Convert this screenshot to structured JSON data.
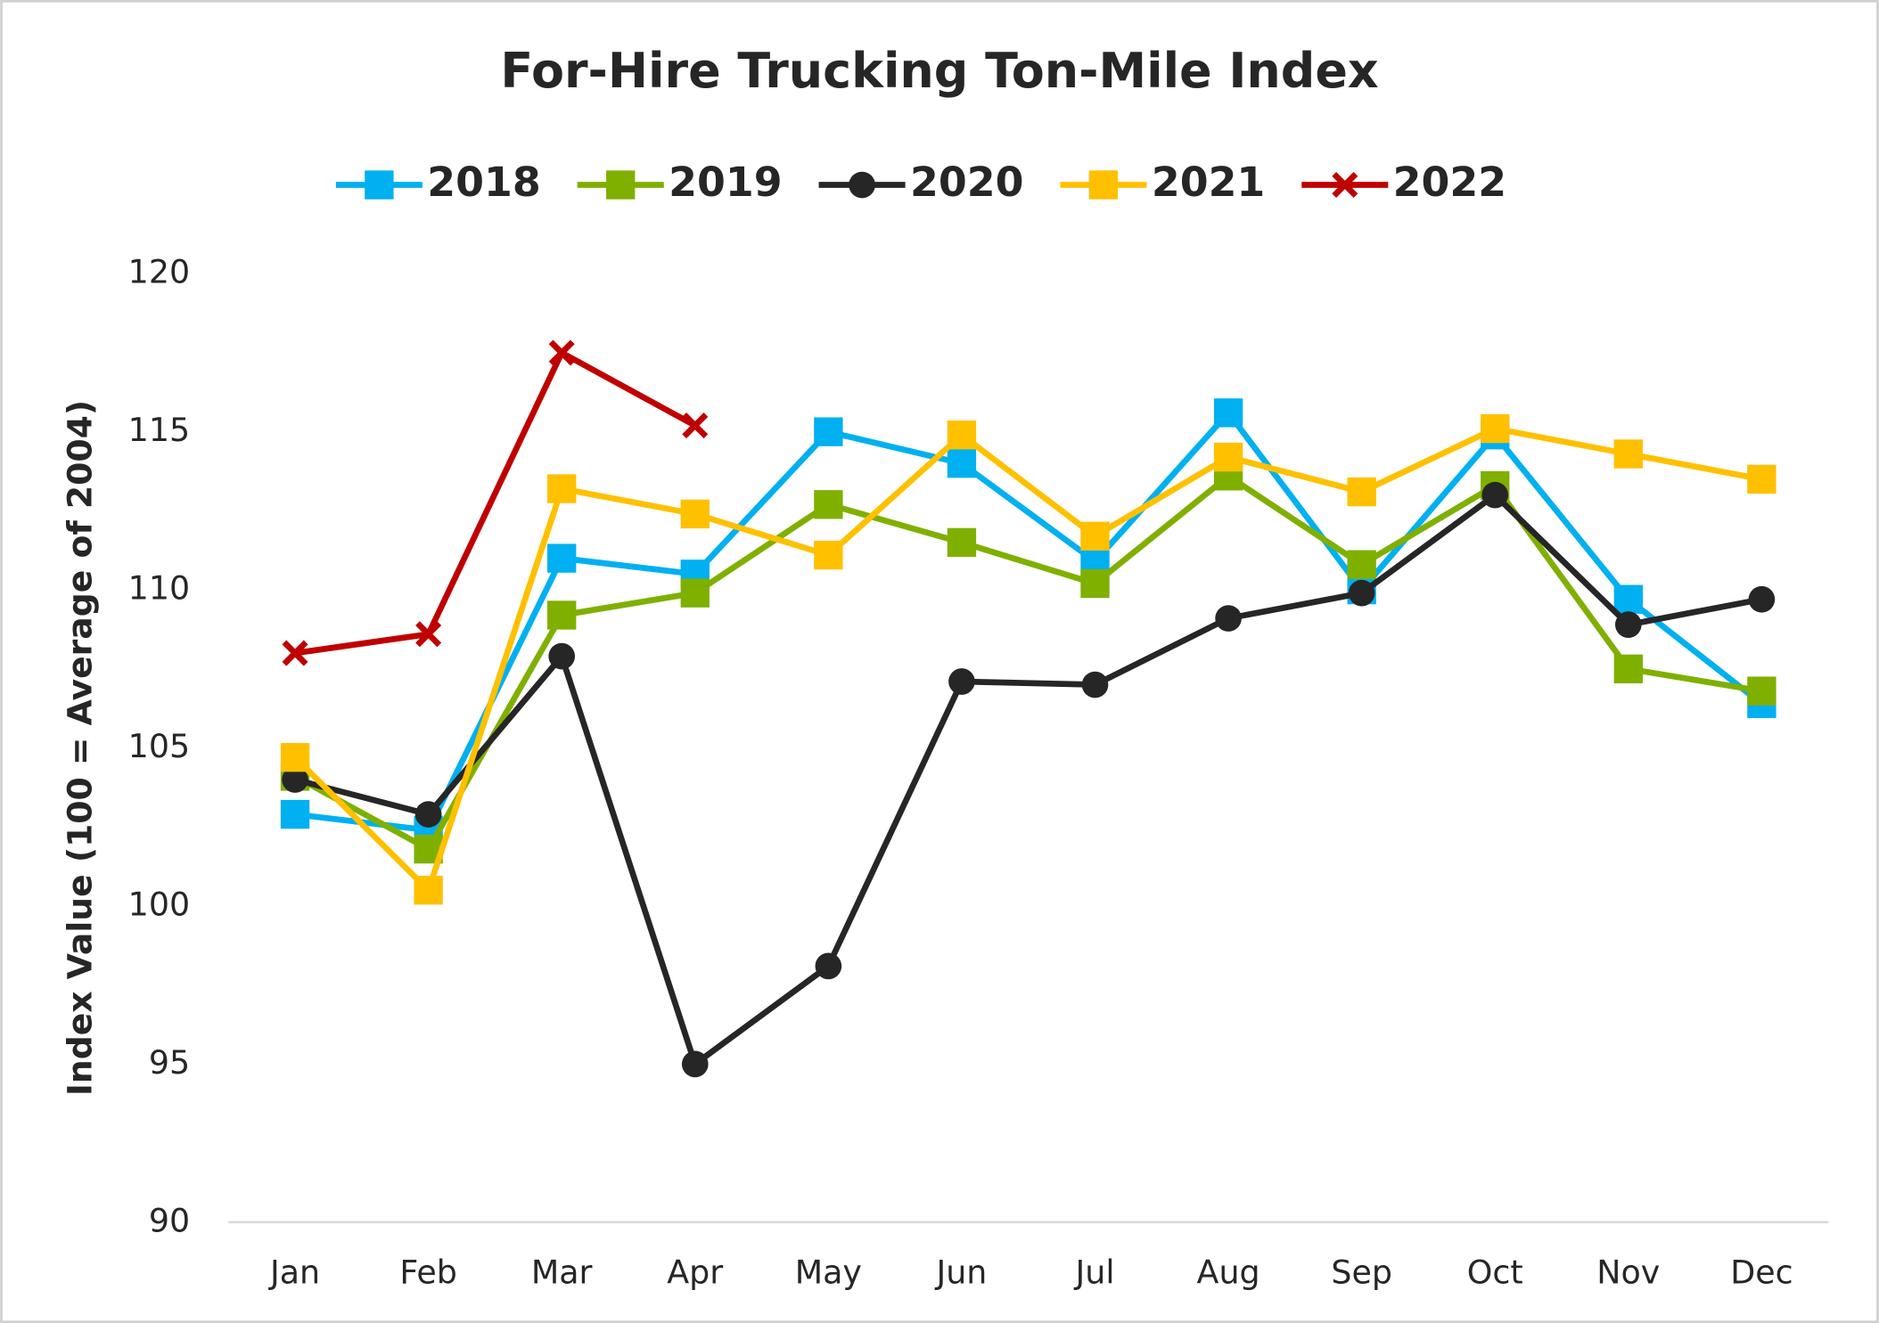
{
  "chart_data": {
    "type": "line",
    "title": "For-Hire Trucking Ton-Mile Index",
    "y_label": "Index Value (100 = Average of 2004)",
    "categories": [
      "Jan",
      "Feb",
      "Mar",
      "Apr",
      "May",
      "Jun",
      "Jul",
      "Aug",
      "Sep",
      "Oct",
      "Nov",
      "Dec"
    ],
    "series": [
      {
        "name": "2018",
        "color": "#00b0f0",
        "marker": "square",
        "values": [
          102.9,
          102.4,
          111.0,
          110.5,
          115.0,
          114.0,
          110.9,
          115.6,
          110.0,
          114.9,
          109.7,
          106.4
        ]
      },
      {
        "name": "2019",
        "color": "#7fb000",
        "marker": "square",
        "values": [
          104.1,
          101.8,
          109.2,
          109.9,
          112.7,
          111.5,
          110.2,
          113.6,
          110.8,
          113.3,
          107.5,
          106.8
        ]
      },
      {
        "name": "2020",
        "color": "#262626",
        "marker": "circle",
        "values": [
          104.0,
          102.9,
          107.9,
          95.0,
          98.1,
          107.1,
          107.0,
          109.1,
          109.9,
          113.0,
          108.9,
          109.7
        ]
      },
      {
        "name": "2021",
        "color": "#ffc000",
        "marker": "square",
        "values": [
          104.7,
          100.5,
          113.2,
          112.4,
          111.1,
          114.9,
          111.7,
          114.2,
          113.1,
          115.1,
          114.3,
          113.5
        ]
      },
      {
        "name": "2022",
        "color": "#c00000",
        "marker": "x",
        "values": [
          108.0,
          108.6,
          117.5,
          115.2,
          null,
          null,
          null,
          null,
          null,
          null,
          null,
          null
        ]
      }
    ],
    "ylim": [
      90,
      120
    ],
    "yticks": [
      90,
      95,
      100,
      105,
      110,
      115,
      120
    ],
    "grid": false,
    "legend": "top"
  }
}
